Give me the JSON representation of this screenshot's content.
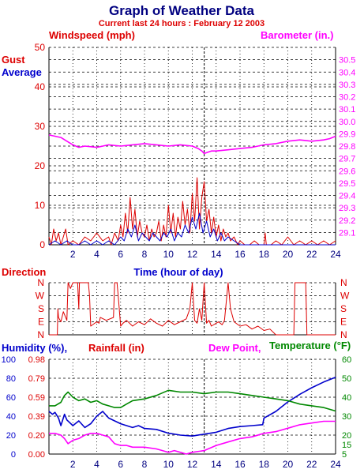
{
  "page": {
    "title": "Graph of Weather Data",
    "subtitle": "Current last 24 hours : February 12 2003"
  },
  "colors": {
    "red": "#dd0000",
    "blue": "#0000cc",
    "magenta": "#ff00ff",
    "green": "#008800",
    "navy": "#000080",
    "grid": "#000000"
  },
  "chart_data": [
    {
      "id": "wind",
      "type": "line",
      "labels": {
        "left_title": "Windspeed (mph)",
        "right_title": "Barometer (in.)",
        "gust": "Gust",
        "average": "Average",
        "xlabel": "Time (hour of day)"
      },
      "xlim": [
        0,
        24
      ],
      "x_ticks": [
        2,
        4,
        6,
        8,
        10,
        12,
        14,
        16,
        18,
        20,
        22,
        24
      ],
      "ylim_left": [
        0,
        50
      ],
      "y_ticks_left": [
        0,
        10,
        20,
        30,
        40,
        50
      ],
      "ylim_right": [
        29.0,
        30.6
      ],
      "y_ticks_right": [
        "29.1",
        "29.2",
        "29.3",
        "29.4",
        "29.5",
        "29.6",
        "29.7",
        "29.8",
        "29.9",
        "30.0",
        "30.1",
        "30.2",
        "30.3",
        "30.4",
        "30.5"
      ],
      "grid": true,
      "marker_x": 13,
      "series": [
        {
          "name": "Gust",
          "color": "#dd0000",
          "x": [
            0,
            0.2,
            0.4,
            0.6,
            0.8,
            1.0,
            1.2,
            1.4,
            1.6,
            2.0,
            2.5,
            3.0,
            3.5,
            4.0,
            4.5,
            5.0,
            5.2,
            5.5,
            5.8,
            6.0,
            6.2,
            6.4,
            6.6,
            6.8,
            7.0,
            7.2,
            7.4,
            7.6,
            7.8,
            8.0,
            8.2,
            8.4,
            8.6,
            8.8,
            9.0,
            9.2,
            9.4,
            9.6,
            9.8,
            10.0,
            10.2,
            10.4,
            10.6,
            10.8,
            11.0,
            11.2,
            11.4,
            11.6,
            11.8,
            12.0,
            12.2,
            12.4,
            12.6,
            12.8,
            13.0,
            13.2,
            13.4,
            13.6,
            13.8,
            14.0,
            14.2,
            14.4,
            14.6,
            14.8,
            15.0,
            15.2,
            15.5,
            15.8,
            16.0,
            16.4,
            16.8,
            17.2,
            17.6,
            18.0,
            18.1,
            18.2,
            18.6,
            19.0,
            19.5,
            20.0,
            20.5,
            21.0,
            21.5,
            22.0,
            22.5,
            23.0,
            23.5,
            24.0
          ],
          "values": [
            2,
            0,
            4,
            1,
            3,
            0,
            2,
            4,
            0,
            1,
            0,
            2,
            1,
            3,
            1,
            2,
            0,
            3,
            1,
            5,
            2,
            8,
            3,
            12,
            4,
            9,
            2,
            6,
            3,
            2,
            5,
            1,
            4,
            2,
            3,
            6,
            1,
            5,
            2,
            10,
            3,
            8,
            2,
            7,
            4,
            11,
            5,
            9,
            3,
            13,
            6,
            17,
            4,
            12,
            16,
            6,
            9,
            3,
            7,
            2,
            5,
            1,
            4,
            2,
            3,
            1,
            2,
            0,
            1,
            0,
            0,
            1,
            0,
            0,
            3,
            0,
            0,
            1,
            0,
            2,
            0,
            1,
            0,
            1,
            0,
            1,
            0,
            1
          ]
        },
        {
          "name": "Average",
          "color": "#0000cc",
          "x": [
            0,
            0.5,
            1.0,
            1.5,
            2.0,
            2.5,
            3.0,
            3.5,
            4.0,
            4.5,
            5.0,
            5.5,
            6.0,
            6.3,
            6.6,
            6.9,
            7.2,
            7.5,
            7.8,
            8.1,
            8.4,
            8.7,
            9.0,
            9.3,
            9.6,
            9.9,
            10.2,
            10.5,
            10.8,
            11.1,
            11.4,
            11.7,
            12.0,
            12.3,
            12.6,
            12.9,
            13.2,
            13.5,
            13.8,
            14.1,
            14.4,
            14.7,
            15.0,
            15.5,
            16.0,
            17.0,
            18.0,
            19.0,
            20.0,
            21.0,
            22.0,
            23.0,
            24.0
          ],
          "values": [
            0,
            1,
            0,
            1,
            0,
            0,
            1,
            0,
            1,
            0,
            1,
            0,
            2,
            1,
            4,
            2,
            5,
            1,
            3,
            2,
            1,
            3,
            2,
            1,
            3,
            2,
            4,
            1,
            3,
            2,
            5,
            3,
            7,
            4,
            8,
            3,
            6,
            2,
            4,
            1,
            3,
            1,
            2,
            1,
            0,
            0,
            0,
            0,
            0,
            0,
            0,
            0,
            0
          ]
        },
        {
          "name": "Barometer",
          "color": "#ff00ff",
          "axis": "right",
          "x": [
            0,
            0.5,
            1.0,
            1.5,
            2.0,
            2.5,
            3.0,
            4.0,
            5.0,
            6.0,
            7.0,
            8.0,
            9.0,
            10.0,
            11.0,
            12.0,
            12.5,
            12.8,
            13.0,
            13.3,
            13.6,
            14.0,
            15.0,
            16.0,
            17.0,
            18.0,
            19.0,
            20.0,
            21.0,
            22.0,
            23.0,
            23.5,
            24.0
          ],
          "values": [
            29.89,
            29.88,
            29.87,
            29.84,
            29.81,
            29.79,
            29.8,
            29.79,
            29.81,
            29.8,
            29.81,
            29.82,
            29.81,
            29.8,
            29.81,
            29.8,
            29.78,
            29.76,
            29.74,
            29.75,
            29.76,
            29.76,
            29.77,
            29.78,
            29.79,
            29.81,
            29.82,
            29.84,
            29.85,
            29.84,
            29.85,
            29.86,
            29.88
          ]
        }
      ]
    },
    {
      "id": "direction",
      "type": "line",
      "labels": {
        "title": "Direction"
      },
      "categories": [
        "N",
        "W",
        "S",
        "E",
        "N"
      ],
      "xlim": [
        0,
        24
      ],
      "ylim": [
        0,
        360
      ],
      "grid": true,
      "marker_x": 13,
      "series": [
        {
          "name": "Direction",
          "color": "#dd0000",
          "x": [
            0,
            0.7,
            0.75,
            0.8,
            1.0,
            1.2,
            1.5,
            1.6,
            1.8,
            2.0,
            2.4,
            2.5,
            2.55,
            3.3,
            3.4,
            3.5,
            4.0,
            4.2,
            4.3,
            4.8,
            5.4,
            5.5,
            5.7,
            5.8,
            6.0,
            6.2,
            6.5,
            7.0,
            7.5,
            8.0,
            8.5,
            9.0,
            9.5,
            10.0,
            10.5,
            11.0,
            11.5,
            11.8,
            12.0,
            12.2,
            12.4,
            12.6,
            12.8,
            13.0,
            13.2,
            13.4,
            13.6,
            14.0,
            14.2,
            14.5,
            14.7,
            15.0,
            15.2,
            15.5,
            16.0,
            16.5,
            17.0,
            17.5,
            18.0,
            18.5,
            19.0,
            20.5,
            20.6,
            20.7,
            21.0,
            21.3,
            21.5,
            21.6,
            21.7,
            22.0,
            24.0
          ],
          "values": [
            0,
            0,
            180,
            120,
            90,
            160,
            100,
            360,
            320,
            360,
            360,
            180,
            360,
            360,
            270,
            60,
            90,
            80,
            120,
            100,
            120,
            360,
            360,
            270,
            60,
            80,
            100,
            60,
            90,
            70,
            110,
            80,
            60,
            100,
            70,
            90,
            110,
            180,
            360,
            100,
            80,
            180,
            100,
            360,
            80,
            100,
            60,
            80,
            90,
            70,
            100,
            360,
            180,
            90,
            60,
            70,
            40,
            60,
            30,
            40,
            0,
            0,
            360,
            360,
            360,
            360,
            360,
            0,
            0,
            0,
            0
          ]
        }
      ]
    },
    {
      "id": "humidity",
      "type": "line",
      "labels": {
        "humidity_title": "Humidity (%),",
        "rainfall_title": "Rainfall (in)",
        "dew_title": "Dew Point,",
        "temp_title": "Temperature (°F)"
      },
      "xlim": [
        0,
        24
      ],
      "x_ticks": [
        2,
        4,
        6,
        8,
        10,
        12,
        14,
        16,
        18,
        20,
        22,
        24
      ],
      "humidity_ticks": [
        "0",
        "20",
        "40",
        "60",
        "80",
        "100"
      ],
      "rainfall_ticks": [
        "0.00",
        "0.20",
        "0.39",
        "0.59",
        "0.79",
        "0.98"
      ],
      "temp_ticks": [
        "5",
        "15",
        "20",
        "30",
        "40",
        "50",
        "60"
      ],
      "ylim_humidity": [
        0,
        100
      ],
      "ylim_temp": [
        5,
        60
      ],
      "grid": true,
      "marker_x": 13,
      "series": [
        {
          "name": "Humidity",
          "color": "#0000cc",
          "x": [
            0,
            0.3,
            0.5,
            0.8,
            1.0,
            1.3,
            1.5,
            2.0,
            2.5,
            3.0,
            3.5,
            4.0,
            4.5,
            5.0,
            5.5,
            6.0,
            6.5,
            7.0,
            7.5,
            8.0,
            9.0,
            10.0,
            11.0,
            12.0,
            13.0,
            14.0,
            15.0,
            16.0,
            17.0,
            17.9,
            18.0,
            19.0,
            20.0,
            21.0,
            22.0,
            23.0,
            24.0
          ],
          "values": [
            45,
            42,
            44,
            38,
            30,
            42,
            36,
            30,
            35,
            28,
            32,
            40,
            45,
            38,
            35,
            32,
            30,
            28,
            30,
            27,
            26,
            22,
            20,
            19,
            21,
            23,
            27,
            29,
            30,
            31,
            38,
            45,
            55,
            63,
            70,
            76,
            81
          ]
        },
        {
          "name": "Temperature",
          "color": "#008800",
          "x": [
            0,
            0.5,
            1.0,
            1.3,
            1.6,
            2.0,
            2.5,
            3.0,
            3.5,
            4.0,
            4.5,
            5.0,
            5.5,
            6.0,
            6.5,
            7.0,
            8.0,
            9.0,
            10.0,
            11.0,
            12.0,
            13.0,
            14.0,
            15.0,
            16.0,
            17.0,
            18.0,
            19.0,
            20.0,
            21.0,
            22.0,
            23.0,
            24.0
          ],
          "values": [
            33,
            33,
            35,
            39,
            41,
            38,
            36,
            37,
            35,
            36,
            34,
            33,
            32,
            32,
            34,
            36,
            37,
            39,
            42,
            41,
            41,
            40,
            41,
            41,
            40,
            39,
            38,
            37,
            36,
            34,
            33,
            32,
            30
          ]
        },
        {
          "name": "Dew Point",
          "color": "#ff00ff",
          "x": [
            0,
            0.5,
            1.0,
            1.3,
            1.6,
            2.0,
            2.5,
            3.0,
            3.5,
            4.0,
            4.5,
            5.0,
            5.5,
            6.0,
            6.5,
            7.0,
            8.0,
            9.0,
            9.5,
            10.0,
            10.5,
            11.0,
            11.5,
            12.0,
            13.0,
            14.0,
            15.0,
            16.0,
            17.0,
            18.0,
            19.0,
            20.0,
            21.0,
            22.0,
            23.0,
            24.0
          ],
          "values": [
            17,
            17,
            16,
            14,
            11,
            13,
            14,
            16,
            17,
            17,
            16,
            15,
            11,
            10,
            10,
            9,
            9,
            8,
            7,
            6,
            7,
            6,
            5,
            6,
            7,
            10,
            12,
            14,
            15,
            17,
            18,
            20,
            22,
            23,
            24,
            24
          ]
        }
      ]
    }
  ]
}
